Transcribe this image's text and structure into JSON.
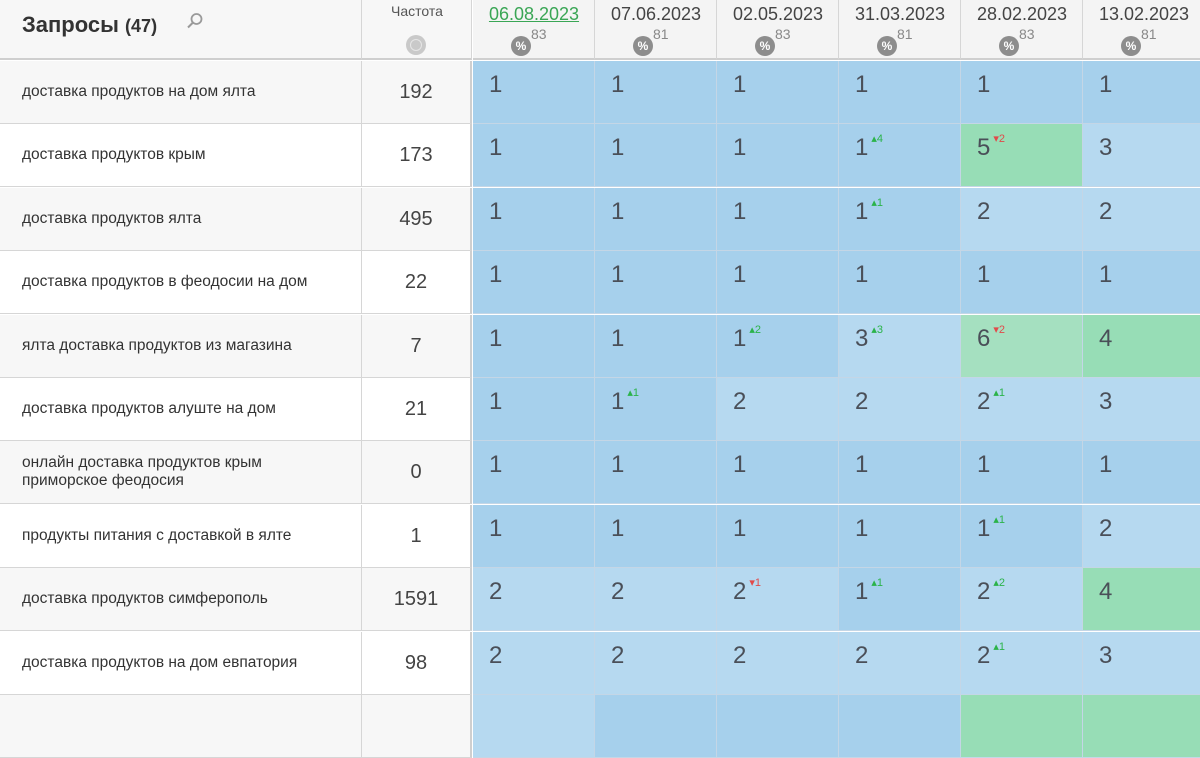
{
  "header": {
    "title": "Запросы",
    "count": "(47)",
    "freq_label": "Частота",
    "dates": [
      {
        "date": "06.08.2023",
        "pct": "83",
        "active": true
      },
      {
        "date": "07.06.2023",
        "pct": "81",
        "active": false
      },
      {
        "date": "02.05.2023",
        "pct": "83",
        "active": false
      },
      {
        "date": "31.03.2023",
        "pct": "81",
        "active": false
      },
      {
        "date": "28.02.2023",
        "pct": "83",
        "active": false
      },
      {
        "date": "13.02.2023",
        "pct": "81",
        "active": false
      }
    ]
  },
  "colors": {
    "top1": "#a6d0ec",
    "top3": "#b6d9f0",
    "top5": "#97ddb6",
    "up": "#2bb34a",
    "down": "#e14a4a"
  },
  "rows": [
    {
      "query": "доставка продуктов на дом ялта",
      "freq": "192",
      "pos": [
        {
          "v": "1",
          "d": "",
          "dir": ""
        },
        {
          "v": "1",
          "d": "",
          "dir": ""
        },
        {
          "v": "1",
          "d": "",
          "dir": ""
        },
        {
          "v": "1",
          "d": "",
          "dir": ""
        },
        {
          "v": "1",
          "d": "",
          "dir": ""
        },
        {
          "v": "1",
          "d": "",
          "dir": ""
        }
      ]
    },
    {
      "query": "доставка продуктов крым",
      "freq": "173",
      "pos": [
        {
          "v": "1",
          "d": "",
          "dir": ""
        },
        {
          "v": "1",
          "d": "",
          "dir": ""
        },
        {
          "v": "1",
          "d": "",
          "dir": ""
        },
        {
          "v": "1",
          "d": "4",
          "dir": "up"
        },
        {
          "v": "5",
          "d": "2",
          "dir": "down"
        },
        {
          "v": "3",
          "d": "",
          "dir": ""
        }
      ]
    },
    {
      "query": "доставка продуктов ялта",
      "freq": "495",
      "pos": [
        {
          "v": "1",
          "d": "",
          "dir": ""
        },
        {
          "v": "1",
          "d": "",
          "dir": ""
        },
        {
          "v": "1",
          "d": "",
          "dir": ""
        },
        {
          "v": "1",
          "d": "1",
          "dir": "up"
        },
        {
          "v": "2",
          "d": "",
          "dir": ""
        },
        {
          "v": "2",
          "d": "",
          "dir": ""
        }
      ]
    },
    {
      "query": "доставка продуктов в феодосии на дом",
      "freq": "22",
      "pos": [
        {
          "v": "1",
          "d": "",
          "dir": ""
        },
        {
          "v": "1",
          "d": "",
          "dir": ""
        },
        {
          "v": "1",
          "d": "",
          "dir": ""
        },
        {
          "v": "1",
          "d": "",
          "dir": ""
        },
        {
          "v": "1",
          "d": "",
          "dir": ""
        },
        {
          "v": "1",
          "d": "",
          "dir": ""
        }
      ]
    },
    {
      "query": "ялта доставка продуктов из магазина",
      "freq": "7",
      "pos": [
        {
          "v": "1",
          "d": "",
          "dir": ""
        },
        {
          "v": "1",
          "d": "",
          "dir": ""
        },
        {
          "v": "1",
          "d": "2",
          "dir": "up"
        },
        {
          "v": "3",
          "d": "3",
          "dir": "up"
        },
        {
          "v": "6",
          "d": "2",
          "dir": "down"
        },
        {
          "v": "4",
          "d": "",
          "dir": ""
        }
      ]
    },
    {
      "query": "доставка продуктов алуште на дом",
      "freq": "21",
      "pos": [
        {
          "v": "1",
          "d": "",
          "dir": ""
        },
        {
          "v": "1",
          "d": "1",
          "dir": "up"
        },
        {
          "v": "2",
          "d": "",
          "dir": ""
        },
        {
          "v": "2",
          "d": "",
          "dir": ""
        },
        {
          "v": "2",
          "d": "1",
          "dir": "up"
        },
        {
          "v": "3",
          "d": "",
          "dir": ""
        }
      ]
    },
    {
      "query": "онлайн доставка продуктов крым приморское феодосия",
      "freq": "0",
      "pos": [
        {
          "v": "1",
          "d": "",
          "dir": ""
        },
        {
          "v": "1",
          "d": "",
          "dir": ""
        },
        {
          "v": "1",
          "d": "",
          "dir": ""
        },
        {
          "v": "1",
          "d": "",
          "dir": ""
        },
        {
          "v": "1",
          "d": "",
          "dir": ""
        },
        {
          "v": "1",
          "d": "",
          "dir": ""
        }
      ]
    },
    {
      "query": "продукты питания с доставкой в ялте",
      "freq": "1",
      "pos": [
        {
          "v": "1",
          "d": "",
          "dir": ""
        },
        {
          "v": "1",
          "d": "",
          "dir": ""
        },
        {
          "v": "1",
          "d": "",
          "dir": ""
        },
        {
          "v": "1",
          "d": "",
          "dir": ""
        },
        {
          "v": "1",
          "d": "1",
          "dir": "up"
        },
        {
          "v": "2",
          "d": "",
          "dir": ""
        }
      ]
    },
    {
      "query": "доставка продуктов симферополь",
      "freq": "1591",
      "pos": [
        {
          "v": "2",
          "d": "",
          "dir": ""
        },
        {
          "v": "2",
          "d": "",
          "dir": ""
        },
        {
          "v": "2",
          "d": "1",
          "dir": "down"
        },
        {
          "v": "1",
          "d": "1",
          "dir": "up"
        },
        {
          "v": "2",
          "d": "2",
          "dir": "up"
        },
        {
          "v": "4",
          "d": "",
          "dir": ""
        }
      ]
    },
    {
      "query": "доставка продуктов на дом евпатория",
      "freq": "98",
      "pos": [
        {
          "v": "2",
          "d": "",
          "dir": ""
        },
        {
          "v": "2",
          "d": "",
          "dir": ""
        },
        {
          "v": "2",
          "d": "",
          "dir": ""
        },
        {
          "v": "2",
          "d": "",
          "dir": ""
        },
        {
          "v": "2",
          "d": "1",
          "dir": "up"
        },
        {
          "v": "3",
          "d": "",
          "dir": ""
        }
      ]
    }
  ]
}
